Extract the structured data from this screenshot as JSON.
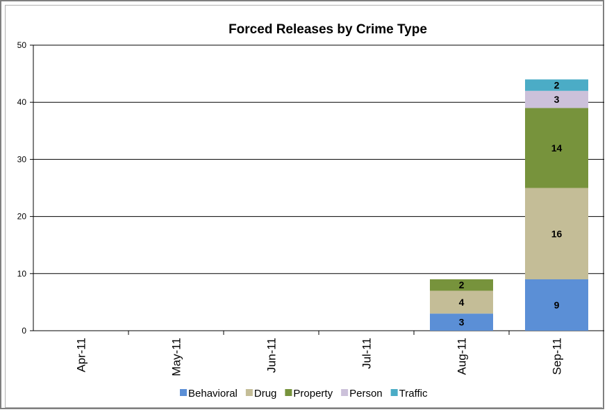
{
  "chart_data": {
    "type": "bar",
    "stacked": true,
    "title": "Forced Releases by Crime Type",
    "xlabel": "",
    "ylabel": "",
    "ylim": [
      0,
      50
    ],
    "yticks": [
      "0",
      "10",
      "20",
      "30",
      "40",
      "50"
    ],
    "categories": [
      "Apr-11",
      "May-11",
      "Jun-11",
      "Jul-11",
      "Aug-11",
      "Sep-11"
    ],
    "series": [
      {
        "name": "Behavioral",
        "color": "#5b8fd6",
        "values": [
          0,
          0,
          0,
          0,
          3,
          9
        ]
      },
      {
        "name": "Drug",
        "color": "#c4bd97",
        "values": [
          0,
          0,
          0,
          0,
          4,
          16
        ]
      },
      {
        "name": "Property",
        "color": "#77933c",
        "values": [
          0,
          0,
          0,
          0,
          2,
          14
        ]
      },
      {
        "name": "Person",
        "color": "#ccc1da",
        "values": [
          0,
          0,
          0,
          0,
          0,
          3
        ]
      },
      {
        "name": "Traffic",
        "color": "#4bacc6",
        "values": [
          0,
          0,
          0,
          0,
          0,
          2
        ]
      }
    ],
    "grid": true,
    "legend": "bottom"
  }
}
